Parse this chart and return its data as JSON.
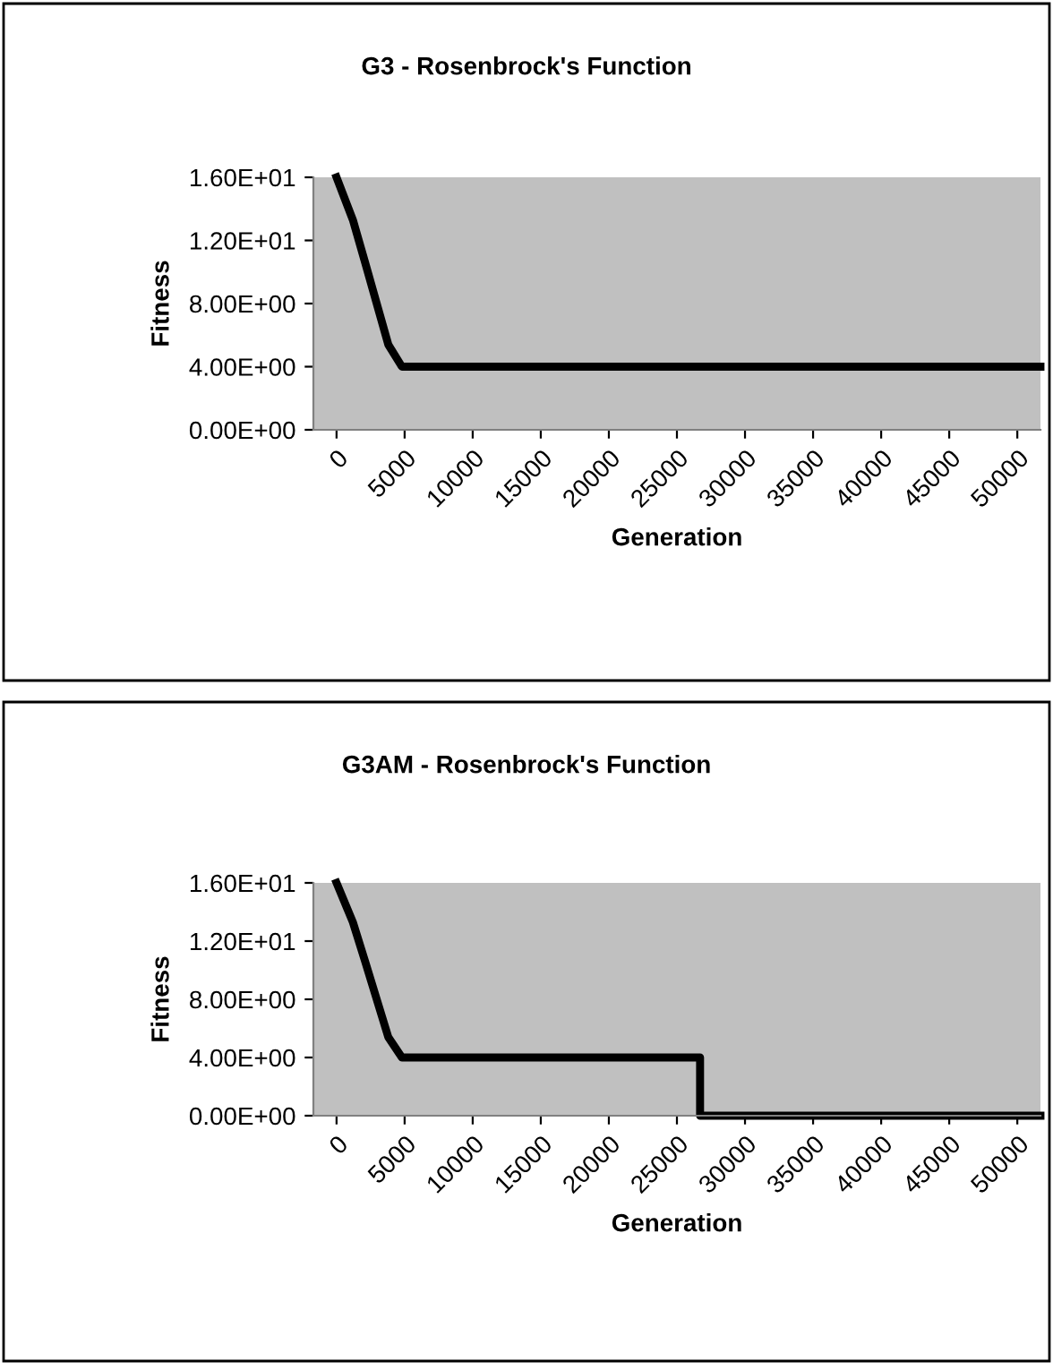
{
  "chart_data": [
    {
      "type": "line",
      "title": "G3 - Rosenbrock's Function",
      "xlabel": "Generation",
      "ylabel": "Fitness",
      "xlim": [
        -1700,
        51700
      ],
      "xticks": [
        0,
        5000,
        10000,
        15000,
        20000,
        25000,
        30000,
        35000,
        40000,
        45000,
        50000
      ],
      "ylim": [
        0,
        16
      ],
      "yticks": [
        {
          "value": 0,
          "label": "0.00E+00"
        },
        {
          "value": 4,
          "label": "4.00E+00"
        },
        {
          "value": 8,
          "label": "8.00E+00"
        },
        {
          "value": 12,
          "label": "1.20E+01"
        },
        {
          "value": 16,
          "label": "1.60E+01"
        }
      ],
      "grid": false,
      "legend": false,
      "marker": "none",
      "line_style": "solid",
      "series": [
        {
          "color": "#000000",
          "x": [
            0,
            1200,
            2100,
            3800,
            4800,
            51700
          ],
          "values": [
            16,
            13.3,
            10.6,
            5.4,
            4,
            4
          ]
        }
      ]
    },
    {
      "type": "line",
      "title": "G3AM - Rosenbrock's Function",
      "xlabel": "Generation",
      "ylabel": "Fitness",
      "xlim": [
        -1700,
        51700
      ],
      "xticks": [
        0,
        5000,
        10000,
        15000,
        20000,
        25000,
        30000,
        35000,
        40000,
        45000,
        50000
      ],
      "ylim": [
        0,
        16
      ],
      "yticks": [
        {
          "value": 0,
          "label": "0.00E+00"
        },
        {
          "value": 4,
          "label": "4.00E+00"
        },
        {
          "value": 8,
          "label": "8.00E+00"
        },
        {
          "value": 12,
          "label": "1.20E+01"
        },
        {
          "value": 16,
          "label": "1.60E+01"
        }
      ],
      "grid": false,
      "legend": false,
      "marker": "none",
      "line_style": "solid",
      "series": [
        {
          "color": "#000000",
          "x": [
            0,
            1200,
            2100,
            3800,
            4800,
            26700,
            26700,
            51700
          ],
          "values": [
            16,
            13.3,
            10.6,
            5.4,
            4,
            4,
            0,
            0
          ]
        }
      ]
    }
  ]
}
